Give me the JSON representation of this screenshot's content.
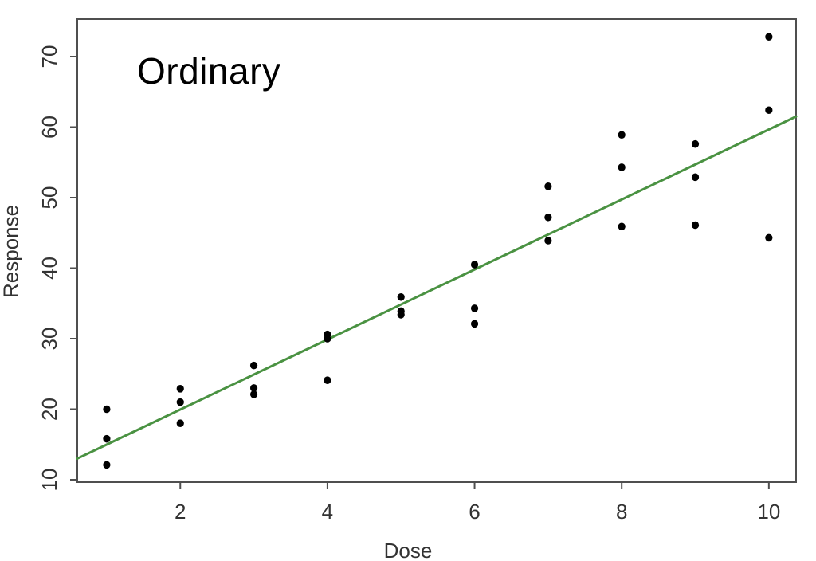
{
  "figure": {
    "title": "Ordinary",
    "xlabel": "Dose",
    "ylabel": "Response",
    "background_color": "#ffffff",
    "frame_color": "#4f4f4f",
    "tick_color": "#4f4f4f",
    "tick_label_color": "#333333",
    "point_color": "#000000",
    "line_color": "#4a9242"
  },
  "chart_data": {
    "type": "scatter",
    "title": "Ordinary",
    "xlabel": "Dose",
    "ylabel": "Response",
    "xlim": [
      0.6,
      10.37
    ],
    "ylim": [
      9.66,
      75.31
    ],
    "x_ticks": [
      2,
      4,
      6,
      8,
      10
    ],
    "y_ticks": [
      10,
      20,
      30,
      40,
      50,
      60,
      70
    ],
    "grid": false,
    "legend": null,
    "points": [
      [
        1,
        20.0
      ],
      [
        1,
        15.8
      ],
      [
        1,
        12.1
      ],
      [
        2,
        22.9
      ],
      [
        2,
        21.0
      ],
      [
        2,
        18.0
      ],
      [
        3,
        26.2
      ],
      [
        3,
        23.0
      ],
      [
        3,
        22.1
      ],
      [
        4,
        30.6
      ],
      [
        4,
        30.0
      ],
      [
        4,
        24.1
      ],
      [
        5,
        35.9
      ],
      [
        5,
        33.9
      ],
      [
        5,
        33.4
      ],
      [
        6,
        40.5
      ],
      [
        6,
        34.3
      ],
      [
        6,
        32.1
      ],
      [
        7,
        51.6
      ],
      [
        7,
        47.2
      ],
      [
        7,
        43.9
      ],
      [
        8,
        58.9
      ],
      [
        8,
        54.3
      ],
      [
        8,
        45.9
      ],
      [
        9,
        57.6
      ],
      [
        9,
        52.9
      ],
      [
        9,
        46.1
      ],
      [
        10,
        72.8
      ],
      [
        10,
        62.4
      ],
      [
        10,
        44.3
      ]
    ],
    "regression_line": {
      "x1": 0.6,
      "y1": 13.0,
      "x2": 10.37,
      "y2": 61.5,
      "color": "#4a9242"
    }
  }
}
